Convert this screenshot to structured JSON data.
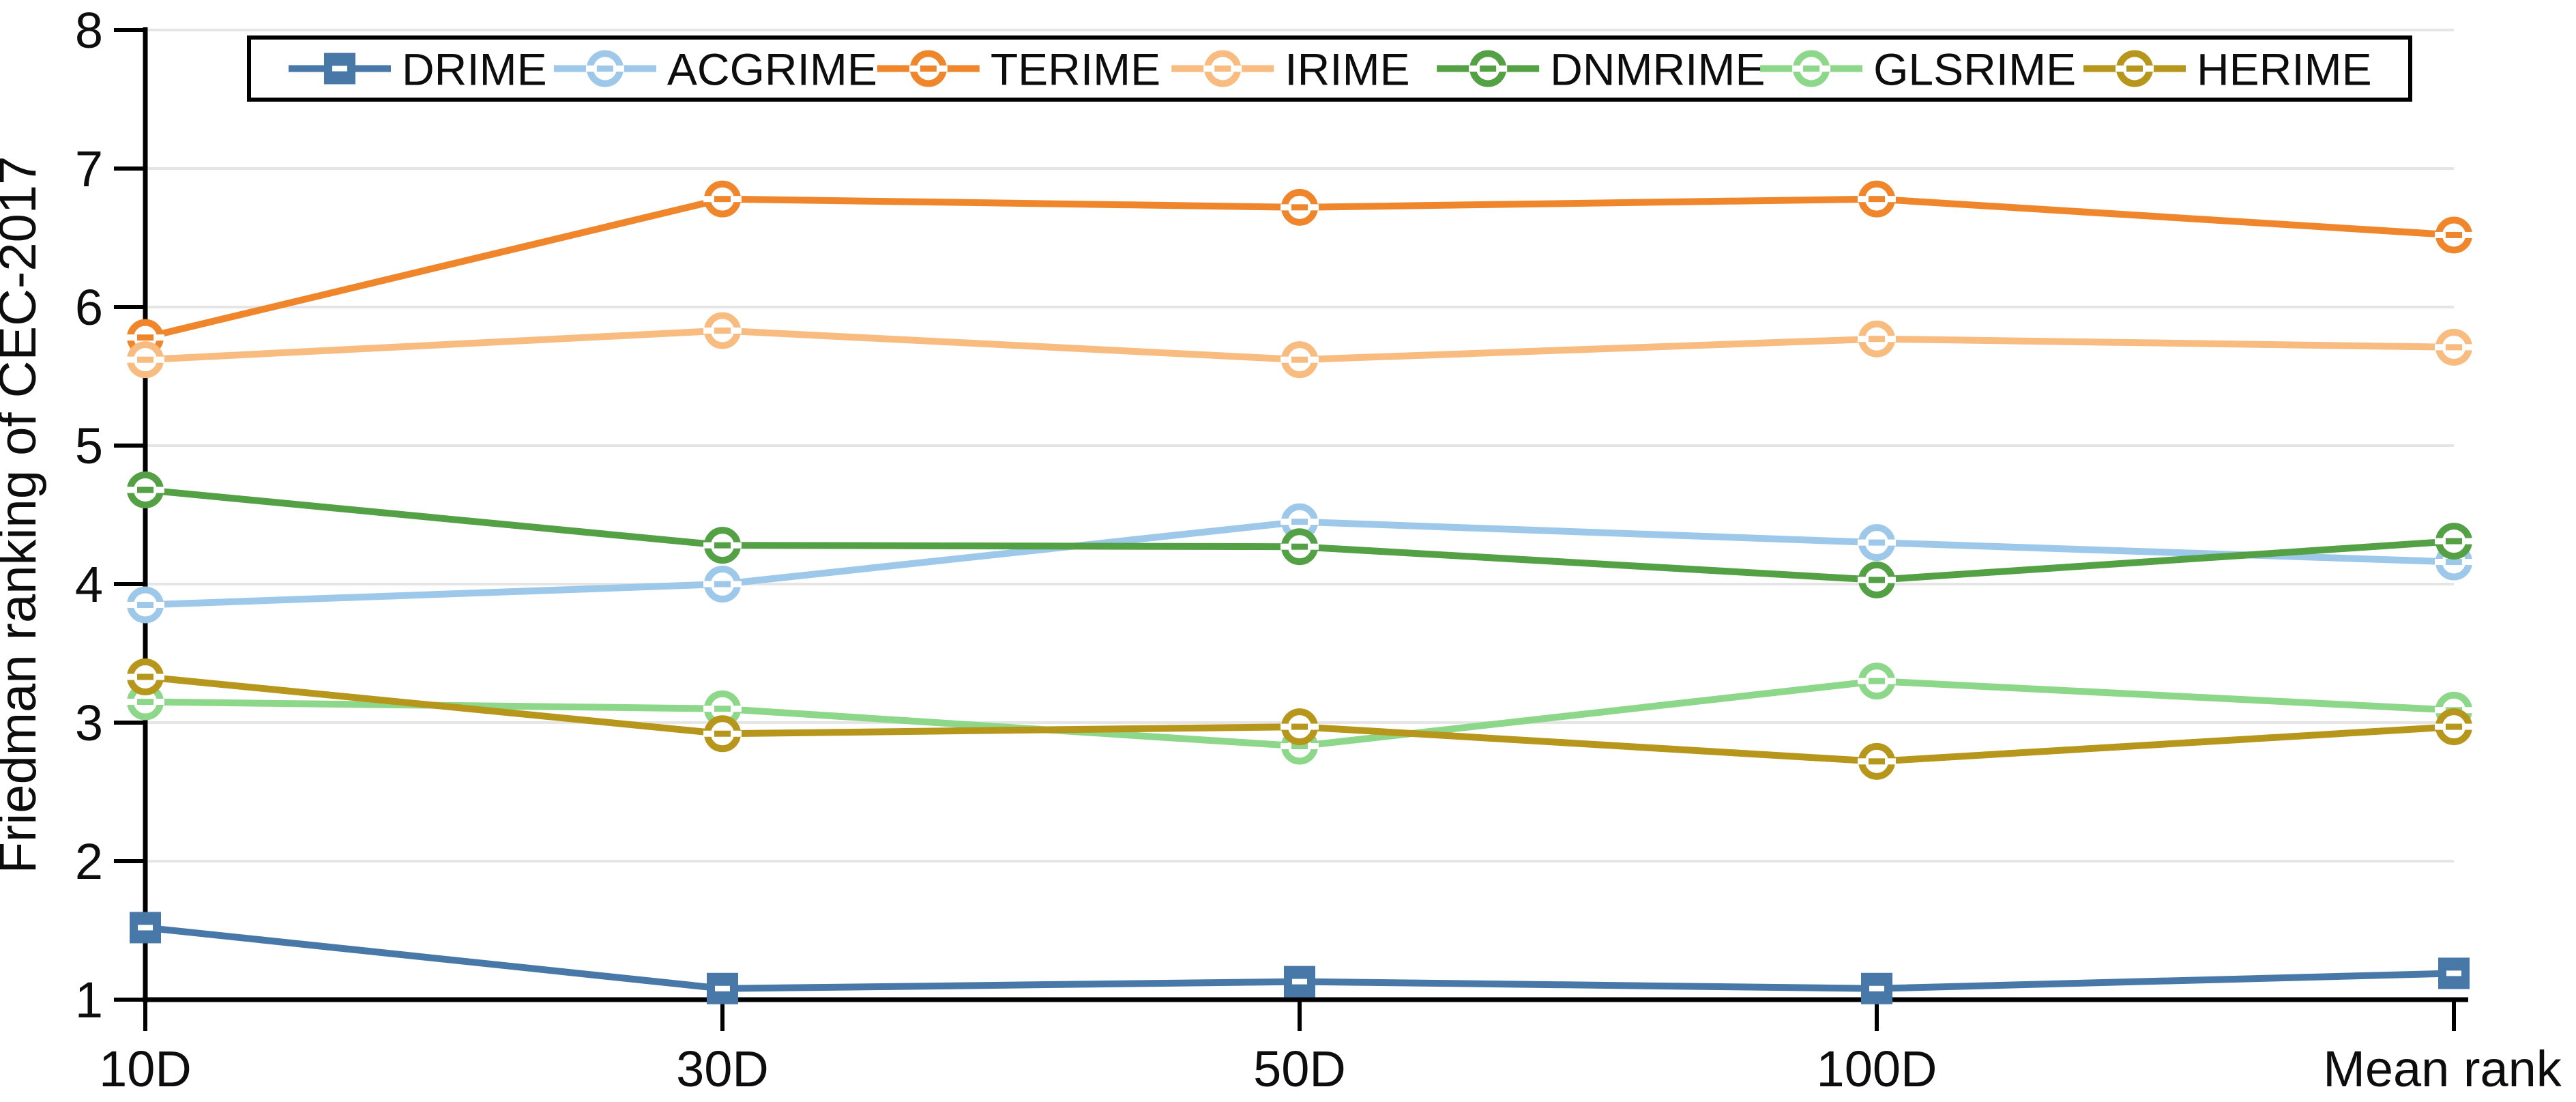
{
  "chart_data": {
    "type": "line",
    "title": "",
    "xlabel": "",
    "ylabel": "Friedman ranking of CEC-2017",
    "ylim": [
      1,
      8
    ],
    "yticks": [
      1,
      2,
      3,
      4,
      5,
      6,
      7,
      8
    ],
    "grid": true,
    "legend_position": "top-inside-box",
    "categories": [
      "10D",
      "30D",
      "50D",
      "100D",
      "Mean rank"
    ],
    "series": [
      {
        "name": "DRIME",
        "color": "#4878a8",
        "marker": "square",
        "values": [
          1.52,
          1.08,
          1.13,
          1.08,
          1.19
        ]
      },
      {
        "name": "ACGRIME",
        "color": "#9dc8e9",
        "marker": "circle",
        "values": [
          3.85,
          4.0,
          4.45,
          4.3,
          4.16
        ]
      },
      {
        "name": "TERIME",
        "color": "#f0862c",
        "marker": "circle",
        "values": [
          5.78,
          6.78,
          6.72,
          6.78,
          6.52
        ]
      },
      {
        "name": "IRIME",
        "color": "#f8bb80",
        "marker": "circle",
        "values": [
          5.62,
          5.83,
          5.62,
          5.77,
          5.71
        ]
      },
      {
        "name": "DNMRIME",
        "color": "#53a045",
        "marker": "circle",
        "values": [
          4.68,
          4.28,
          4.27,
          4.03,
          4.31
        ]
      },
      {
        "name": "GLSRIME",
        "color": "#8dd78a",
        "marker": "circle",
        "values": [
          3.15,
          3.1,
          2.83,
          3.3,
          3.09
        ]
      },
      {
        "name": "HERIME",
        "color": "#b6961b",
        "marker": "circle",
        "values": [
          3.33,
          2.92,
          2.97,
          2.72,
          2.97
        ]
      }
    ],
    "colors": {
      "axis": "#000000",
      "gridline": "#e5e5e5",
      "tick_text": "#0d0d0d",
      "legend_border": "#000000",
      "legend_background": "#ffffff"
    }
  }
}
